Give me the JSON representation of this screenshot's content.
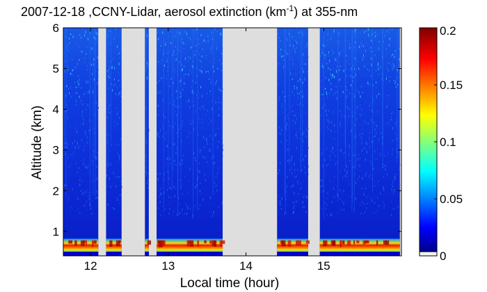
{
  "chart_data": {
    "type": "heatmap",
    "title_prefix": "2007-12-18 ,CCNY-Lidar, aerosol extinction (km",
    "title_sup": "-1",
    "title_suffix": ") at 355-nm",
    "xlabel": "Local time (hour)",
    "ylabel": "Altitude (km)",
    "xlim": [
      11.65,
      16.0
    ],
    "ylim": [
      0.4,
      6.0
    ],
    "x_ticks": [
      12,
      13,
      14,
      15
    ],
    "x_tick_labels": [
      "12",
      "13",
      "14",
      "15"
    ],
    "y_ticks": [
      1,
      2,
      3,
      4,
      5,
      6
    ],
    "y_tick_labels": [
      "1",
      "2",
      "3",
      "4",
      "5",
      "6"
    ],
    "data_segments": [
      {
        "x_start": 11.65,
        "x_end": 12.1
      },
      {
        "x_start": 12.2,
        "x_end": 12.4
      },
      {
        "x_start": 12.7,
        "x_end": 12.75
      },
      {
        "x_start": 12.85,
        "x_end": 13.7
      },
      {
        "x_start": 14.4,
        "x_end": 14.8
      },
      {
        "x_start": 14.95,
        "x_end": 15.98
      }
    ],
    "gap_color": "#dedede",
    "colorbar": {
      "min": 0,
      "max": 0.2,
      "ticks": [
        0,
        0.05,
        0.1,
        0.15,
        0.2
      ],
      "tick_labels": [
        "0",
        "0.05",
        "0.1",
        "0.15",
        "0.2"
      ],
      "colormap": "jet"
    },
    "grid": false
  }
}
